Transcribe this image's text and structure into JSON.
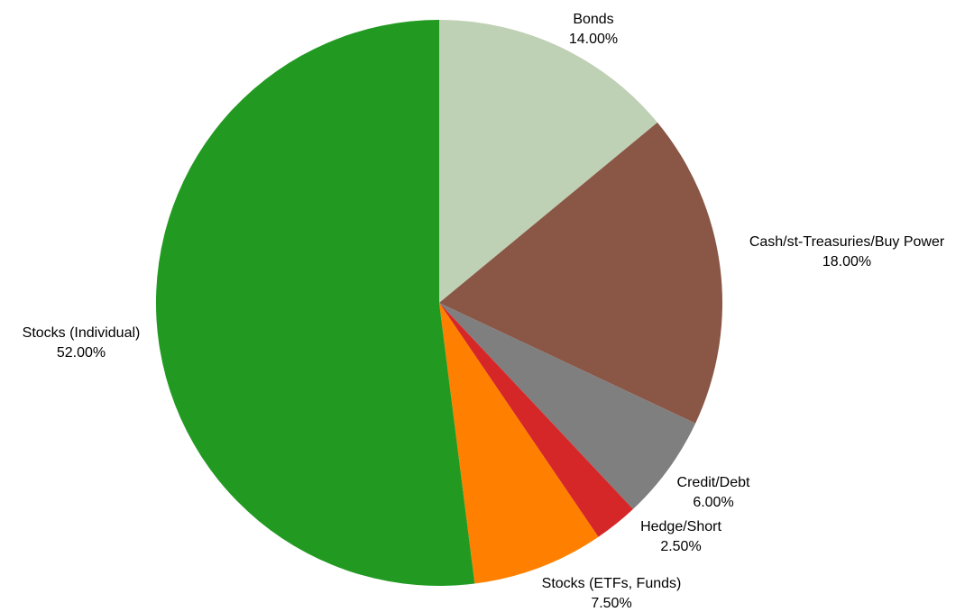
{
  "chart_data": {
    "type": "pie",
    "title": "",
    "start_angle_deg": 0,
    "direction": "clockwise",
    "legend": "none",
    "slices": [
      {
        "name": "Bonds",
        "value": 14.0,
        "value_label": "14.00%",
        "color": "#bfd1b4"
      },
      {
        "name": "Cash/st-Treasuries/Buy Power",
        "value": 18.0,
        "value_label": "18.00%",
        "color": "#8a5646"
      },
      {
        "name": "Credit/Debt",
        "value": 6.0,
        "value_label": "6.00%",
        "color": "#7f7f7f"
      },
      {
        "name": "Hedge/Short",
        "value": 2.5,
        "value_label": "2.50%",
        "color": "#d62728"
      },
      {
        "name": "Stocks (ETFs, Funds)",
        "value": 7.5,
        "value_label": "7.50%",
        "color": "#ff8000"
      },
      {
        "name": "Stocks (Individual)",
        "value": 52.0,
        "value_label": "52.00%",
        "color": "#229a22"
      }
    ]
  }
}
